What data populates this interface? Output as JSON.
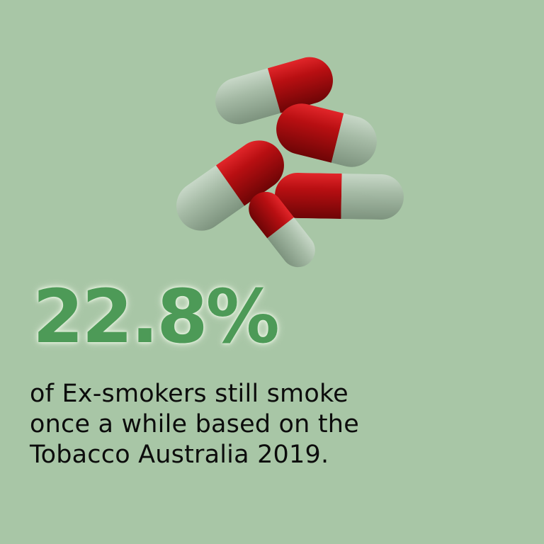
{
  "colors": {
    "background": "#a8c6a6",
    "stat_text": "#4d9a57",
    "caption_text": "#0c0c0c",
    "capsule_red": "#b30d0e",
    "capsule_grey": "#a3b9a4"
  },
  "illustration": {
    "icon": "capsule-pills-icon"
  },
  "stat": {
    "value": "22.8%"
  },
  "caption": {
    "lines": [
      "of Ex-smokers still smoke",
      "once a while based on the",
      "Tobacco Australia 2019."
    ]
  }
}
